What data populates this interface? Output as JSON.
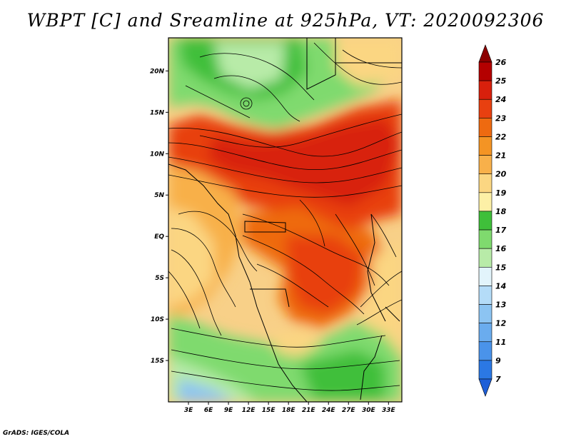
{
  "title": "WBPT [C] and Sreamline at 925hPa, VT: 2020092306",
  "credit": "GrADS: IGES/COLA",
  "map": {
    "variable": "WBPT",
    "unit": "C",
    "level": "925hPa",
    "valid_time": "2020092306",
    "lon_ticks": [
      "3E",
      "6E",
      "9E",
      "12E",
      "15E",
      "18E",
      "21E",
      "24E",
      "27E",
      "30E",
      "33E"
    ],
    "lat_ticks": [
      "20N",
      "15N",
      "10N",
      "5N",
      "EQ",
      "5S",
      "10S",
      "15S"
    ],
    "lon_range": [
      0,
      35
    ],
    "lat_range": [
      -20,
      24
    ],
    "streamlines": "black streamlines with arrowheads"
  },
  "colorbar": {
    "labels": [
      "7",
      "9",
      "11",
      "12",
      "13",
      "14",
      "15",
      "16",
      "17",
      "18",
      "19",
      "20",
      "21",
      "22",
      "23",
      "24",
      "25",
      "26"
    ],
    "colors": [
      "#1e5fd8",
      "#2b78e4",
      "#4a93ea",
      "#6aacee",
      "#8cc4f2",
      "#b4dcf8",
      "#e2f4fb",
      "#b8eba8",
      "#7fda6e",
      "#3fbf3a",
      "#fdf0a6",
      "#fbd682",
      "#f8b04a",
      "#f49424",
      "#ee6a10",
      "#e84010",
      "#d8200c",
      "#b40000",
      "#8c0000"
    ]
  }
}
